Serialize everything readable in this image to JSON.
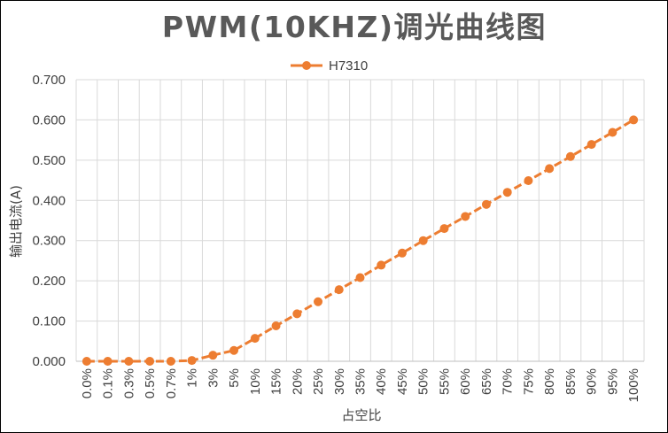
{
  "chart_data": {
    "type": "line",
    "title": "PWM(10KHZ)调光曲线图",
    "xlabel": "占空比",
    "ylabel": "输出电流(A)",
    "categories": [
      "0.0%",
      "0.1%",
      "0.3%",
      "0.5%",
      "0.7%",
      "1%",
      "3%",
      "5%",
      "10%",
      "15%",
      "20%",
      "25%",
      "30%",
      "35%",
      "40%",
      "45%",
      "50%",
      "55%",
      "60%",
      "65%",
      "70%",
      "75%",
      "80%",
      "85%",
      "90%",
      "95%",
      "100%"
    ],
    "series": [
      {
        "name": "H7310",
        "color": "#ED7D31",
        "values": [
          0.0,
          0.0,
          0.0,
          0.0,
          0.0,
          0.002,
          0.015,
          0.027,
          0.057,
          0.088,
          0.118,
          0.148,
          0.178,
          0.208,
          0.239,
          0.269,
          0.3,
          0.33,
          0.36,
          0.39,
          0.42,
          0.449,
          0.479,
          0.509,
          0.539,
          0.569,
          0.6
        ]
      }
    ],
    "yticks": [
      "0.000",
      "0.100",
      "0.200",
      "0.300",
      "0.400",
      "0.500",
      "0.600",
      "0.700"
    ],
    "ylim": [
      0,
      0.7
    ],
    "grid": true,
    "legend_position": "top-center"
  }
}
